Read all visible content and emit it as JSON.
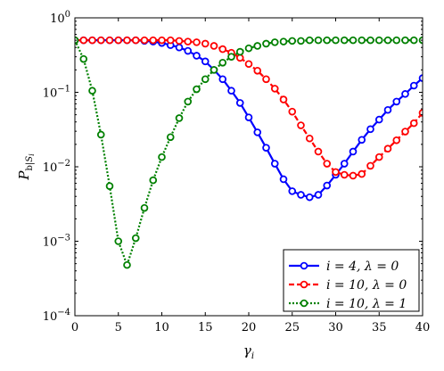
{
  "chart_data": {
    "type": "line",
    "xlabel": "γ_i",
    "ylabel": "P_b|S_i",
    "xlim": [
      0,
      40
    ],
    "ylim": [
      0.0001,
      1
    ],
    "yscale": "log",
    "grid": false,
    "legend_position": "bottom-right",
    "x_ticks": [
      0,
      5,
      10,
      15,
      20,
      25,
      30,
      35,
      40
    ],
    "x_tick_labels": [
      "0",
      "5",
      "10",
      "15",
      "20",
      "25",
      "30",
      "35",
      "40"
    ],
    "y_ticks": [
      0.0001,
      0.001,
      0.01,
      0.1,
      1
    ],
    "y_tick_labels": [
      {
        "base": "10",
        "exp": "−4"
      },
      {
        "base": "10",
        "exp": "−3"
      },
      {
        "base": "10",
        "exp": "−2"
      },
      {
        "base": "10",
        "exp": "−1"
      },
      {
        "base": "10",
        "exp": "0"
      }
    ],
    "x": [
      0,
      1,
      2,
      3,
      4,
      5,
      6,
      7,
      8,
      9,
      10,
      11,
      12,
      13,
      14,
      15,
      16,
      17,
      18,
      19,
      20,
      21,
      22,
      23,
      24,
      25,
      26,
      27,
      28,
      29,
      30,
      31,
      32,
      33,
      34,
      35,
      36,
      37,
      38,
      39,
      40
    ],
    "series": [
      {
        "name": "i = 4, λ = 0",
        "color": "#0000ff",
        "dash": "solid",
        "values": [
          0.5,
          0.5,
          0.5,
          0.5,
          0.5,
          0.5,
          0.5,
          0.5,
          0.49,
          0.48,
          0.46,
          0.43,
          0.4,
          0.36,
          0.31,
          0.26,
          0.2,
          0.15,
          0.105,
          0.072,
          0.046,
          0.029,
          0.018,
          0.011,
          0.0068,
          0.0047,
          0.0042,
          0.0039,
          0.0042,
          0.0056,
          0.0078,
          0.011,
          0.016,
          0.023,
          0.032,
          0.043,
          0.058,
          0.075,
          0.095,
          0.123,
          0.155
        ]
      },
      {
        "name": "i = 10, λ = 0",
        "color": "#ff0000",
        "dash": "dashed",
        "values": [
          0.5,
          0.5,
          0.5,
          0.5,
          0.5,
          0.5,
          0.5,
          0.5,
          0.5,
          0.5,
          0.5,
          0.5,
          0.49,
          0.48,
          0.47,
          0.45,
          0.42,
          0.38,
          0.34,
          0.29,
          0.24,
          0.195,
          0.15,
          0.112,
          0.08,
          0.055,
          0.036,
          0.024,
          0.016,
          0.011,
          0.0085,
          0.0078,
          0.0076,
          0.008,
          0.0103,
          0.0135,
          0.0175,
          0.0227,
          0.0297,
          0.0385,
          0.053
        ]
      },
      {
        "name": "i = 10, λ = 1",
        "color": "#008000",
        "dash": "dotted",
        "values": [
          0.5,
          0.28,
          0.105,
          0.027,
          0.0055,
          0.001,
          0.00048,
          0.0011,
          0.0028,
          0.0066,
          0.0135,
          0.025,
          0.045,
          0.075,
          0.11,
          0.15,
          0.2,
          0.25,
          0.3,
          0.35,
          0.39,
          0.42,
          0.45,
          0.47,
          0.48,
          0.49,
          0.49,
          0.5,
          0.5,
          0.5,
          0.5,
          0.5,
          0.5,
          0.5,
          0.5,
          0.5,
          0.5,
          0.5,
          0.5,
          0.5,
          0.5
        ]
      }
    ]
  }
}
